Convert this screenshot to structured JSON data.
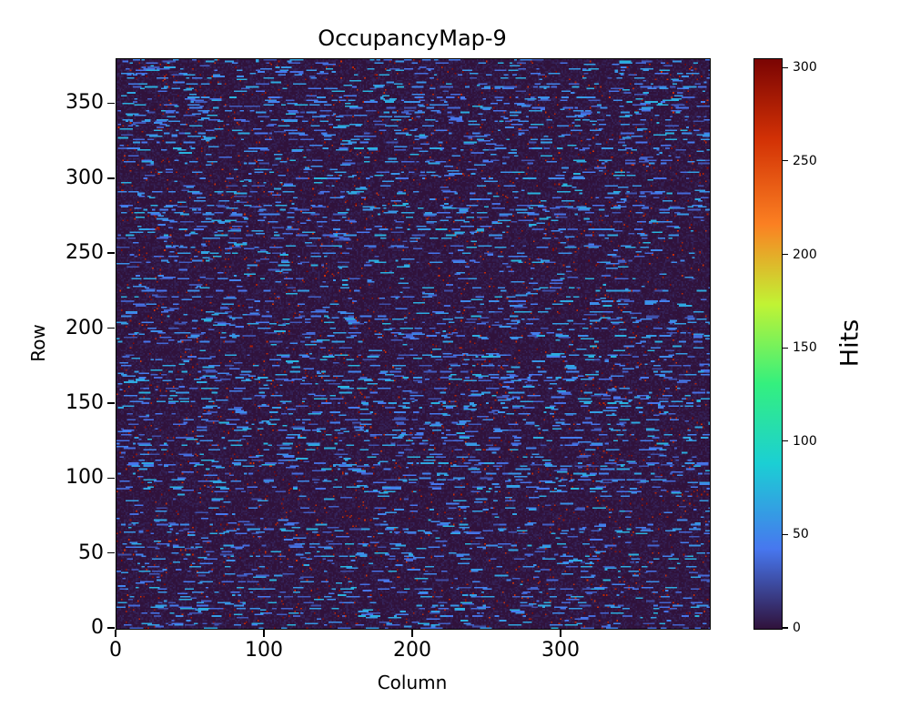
{
  "chart_data": {
    "type": "heatmap",
    "title": "OccupancyMap-9",
    "xlabel": "Column",
    "ylabel": "Row",
    "colorbar_label": "Hits",
    "grid_cols": 400,
    "grid_rows": 380,
    "x_range": [
      0,
      400
    ],
    "y_range": [
      0,
      380
    ],
    "x_ticks": [
      0,
      100,
      200,
      300
    ],
    "y_ticks": [
      0,
      50,
      100,
      150,
      200,
      250,
      300,
      350
    ],
    "colorbar_ticks": [
      0,
      50,
      100,
      150,
      200,
      250,
      300
    ],
    "value_range": [
      0,
      305
    ],
    "colormap": "turbo",
    "colormap_stops": [
      {
        "t": 0.0,
        "color": "#30123b"
      },
      {
        "t": 0.14,
        "color": "#4777ef"
      },
      {
        "t": 0.29,
        "color": "#1bcfd4"
      },
      {
        "t": 0.43,
        "color": "#34f07e"
      },
      {
        "t": 0.57,
        "color": "#c1f334"
      },
      {
        "t": 0.71,
        "color": "#fb8022"
      },
      {
        "t": 0.86,
        "color": "#d23105"
      },
      {
        "t": 1.0,
        "color": "#7a0403"
      }
    ],
    "background_value_color": "#30123b",
    "data_summary": "Sparse pixel-occupancy map: most of the 400x380 cells are near 0 hits (dark purple); scattered short horizontal runs of ~25-75 hits appear as blue dashes concentrated in certain rows; rare isolated cells reach up to ~305 hits (dark red specks).",
    "synthesis": {
      "seed": 9,
      "streak_row_probability": 0.4,
      "dash_probability_streak_row": 0.06,
      "dash_probability_normal_row": 0.012,
      "dash_length": [
        2,
        9
      ],
      "dash_value": [
        25,
        75
      ],
      "speck_probability": 0.015,
      "speck_value": [
        260,
        305
      ],
      "baseline_value": [
        0,
        8
      ]
    }
  }
}
